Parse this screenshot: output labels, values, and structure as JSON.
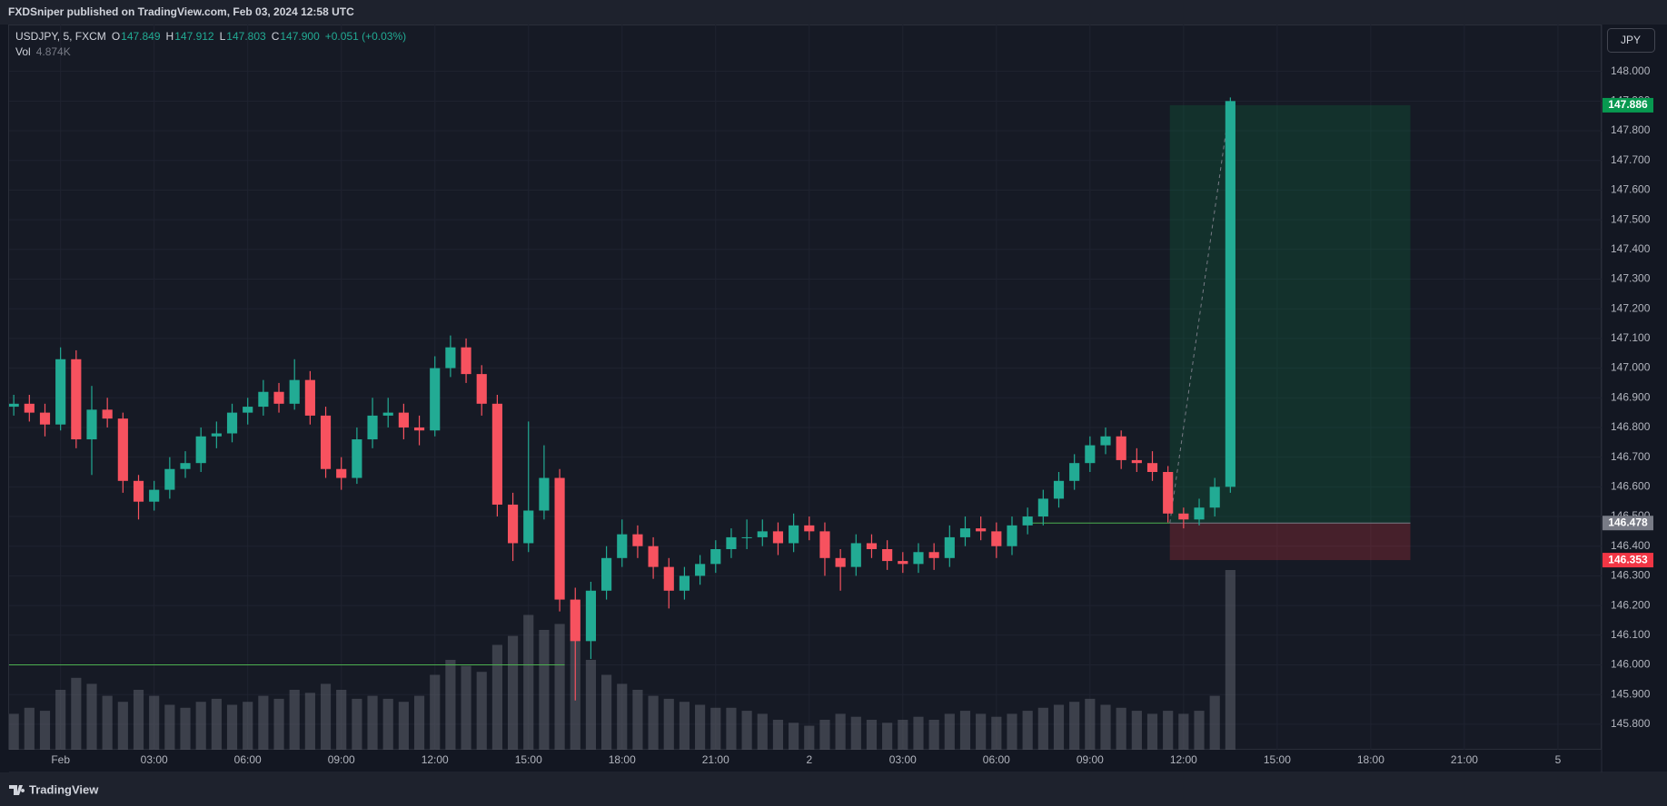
{
  "header": "FXDSniper published on TradingView.com, Feb 03, 2024 12:58 UTC",
  "footer": "TradingView",
  "chart_data": {
    "type": "candlestick",
    "currency": "JPY",
    "legend": {
      "symbol": "USDJPY, 5, FXCM",
      "fields": [
        {
          "label": "O",
          "value": "147.849"
        },
        {
          "label": "H",
          "value": "147.912"
        },
        {
          "label": "L",
          "value": "147.803"
        },
        {
          "label": "C",
          "value": "147.900"
        }
      ],
      "change": "+0.051 (+0.03%)",
      "volume_label": "Vol",
      "volume_value": "4.874K"
    },
    "up_color": "#22ab94",
    "down_color": "#f7525f",
    "volume_color": "#5d606b",
    "grid": true,
    "xlim": [
      -1.65,
      49.4
    ],
    "xticks": [
      {
        "value": 0,
        "label": "Feb"
      },
      {
        "value": 3,
        "label": "03:00"
      },
      {
        "value": 6,
        "label": "06:00"
      },
      {
        "value": 9,
        "label": "09:00"
      },
      {
        "value": 12,
        "label": "12:00"
      },
      {
        "value": 15,
        "label": "15:00"
      },
      {
        "value": 18,
        "label": "18:00"
      },
      {
        "value": 21,
        "label": "21:00"
      },
      {
        "value": 24,
        "label": "2"
      },
      {
        "value": 27,
        "label": "03:00"
      },
      {
        "value": 30,
        "label": "06:00"
      },
      {
        "value": 33,
        "label": "09:00"
      },
      {
        "value": 36,
        "label": "12:00"
      },
      {
        "value": 39,
        "label": "15:00"
      },
      {
        "value": 42,
        "label": "18:00"
      },
      {
        "value": 45,
        "label": "21:00"
      },
      {
        "value": 48,
        "label": "5"
      }
    ],
    "ylim": [
      145.714,
      148.158
    ],
    "yticks": [
      {
        "value": 148.0,
        "label": "148.000"
      },
      {
        "value": 147.9,
        "label": "147.900"
      },
      {
        "value": 147.8,
        "label": "147.800"
      },
      {
        "value": 147.7,
        "label": "147.700"
      },
      {
        "value": 147.6,
        "label": "147.600"
      },
      {
        "value": 147.5,
        "label": "147.500"
      },
      {
        "value": 147.4,
        "label": "147.400"
      },
      {
        "value": 147.3,
        "label": "147.300"
      },
      {
        "value": 147.2,
        "label": "147.200"
      },
      {
        "value": 147.1,
        "label": "147.100"
      },
      {
        "value": 147.0,
        "label": "147.000"
      },
      {
        "value": 146.9,
        "label": "146.900"
      },
      {
        "value": 146.8,
        "label": "146.800"
      },
      {
        "value": 146.7,
        "label": "146.700"
      },
      {
        "value": 146.6,
        "label": "146.600"
      },
      {
        "value": 146.5,
        "label": "146.500"
      },
      {
        "value": 146.4,
        "label": "146.400"
      },
      {
        "value": 146.3,
        "label": "146.300"
      },
      {
        "value": 146.2,
        "label": "146.200"
      },
      {
        "value": 146.1,
        "label": "146.100"
      },
      {
        "value": 146.0,
        "label": "146.000"
      },
      {
        "value": 145.9,
        "label": "145.900"
      },
      {
        "value": 145.8,
        "label": "145.800"
      }
    ],
    "x": [
      -1.5,
      -1.0,
      -0.5,
      0.0,
      0.5,
      1.0,
      1.5,
      2.0,
      2.5,
      3.0,
      3.5,
      4.0,
      4.5,
      5.0,
      5.5,
      6.0,
      6.5,
      7.0,
      7.5,
      8.0,
      8.5,
      9.0,
      9.5,
      10.0,
      10.5,
      11.0,
      11.5,
      12.0,
      12.5,
      13.0,
      13.5,
      14.0,
      14.5,
      15.0,
      15.5,
      16.0,
      16.5,
      17.0,
      17.5,
      18.0,
      18.5,
      19.0,
      19.5,
      20.0,
      20.5,
      21.0,
      21.5,
      22.0,
      22.5,
      23.0,
      23.5,
      24.0,
      24.5,
      25.0,
      25.5,
      26.0,
      26.5,
      27.0,
      27.5,
      28.0,
      28.5,
      29.0,
      29.5,
      30.0,
      30.5,
      31.0,
      31.5,
      32.0,
      32.5,
      33.0,
      33.5,
      34.0,
      34.5,
      35.0,
      35.5,
      36.0,
      36.5,
      37.0,
      37.5
    ],
    "ohlc": [
      [
        146.87,
        146.91,
        146.84,
        146.88
      ],
      [
        146.88,
        146.91,
        146.82,
        146.85
      ],
      [
        146.85,
        146.88,
        146.77,
        146.81
      ],
      [
        146.81,
        147.07,
        146.79,
        147.03
      ],
      [
        147.03,
        147.06,
        146.73,
        146.76
      ],
      [
        146.76,
        146.94,
        146.64,
        146.86
      ],
      [
        146.86,
        146.9,
        146.8,
        146.83
      ],
      [
        146.83,
        146.85,
        146.58,
        146.62
      ],
      [
        146.62,
        146.64,
        146.49,
        146.55
      ],
      [
        146.55,
        146.62,
        146.52,
        146.59
      ],
      [
        146.59,
        146.7,
        146.56,
        146.66
      ],
      [
        146.66,
        146.72,
        146.63,
        146.68
      ],
      [
        146.68,
        146.8,
        146.65,
        146.77
      ],
      [
        146.77,
        146.82,
        146.73,
        146.78
      ],
      [
        146.78,
        146.88,
        146.75,
        146.85
      ],
      [
        146.85,
        146.9,
        146.81,
        146.87
      ],
      [
        146.87,
        146.96,
        146.84,
        146.92
      ],
      [
        146.92,
        146.95,
        146.85,
        146.88
      ],
      [
        146.88,
        147.03,
        146.86,
        146.96
      ],
      [
        146.96,
        146.99,
        146.81,
        146.84
      ],
      [
        146.84,
        146.87,
        146.63,
        146.66
      ],
      [
        146.66,
        146.7,
        146.59,
        146.63
      ],
      [
        146.63,
        146.8,
        146.61,
        146.76
      ],
      [
        146.76,
        146.9,
        146.73,
        146.84
      ],
      [
        146.84,
        146.9,
        146.8,
        146.85
      ],
      [
        146.85,
        146.88,
        146.76,
        146.8
      ],
      [
        146.8,
        146.84,
        146.74,
        146.79
      ],
      [
        146.79,
        147.04,
        146.77,
        147.0
      ],
      [
        147.0,
        147.11,
        146.97,
        147.07
      ],
      [
        147.07,
        147.1,
        146.95,
        146.98
      ],
      [
        146.98,
        147.01,
        146.84,
        146.88
      ],
      [
        146.88,
        146.91,
        146.5,
        146.54
      ],
      [
        146.54,
        146.58,
        146.35,
        146.41
      ],
      [
        146.41,
        146.82,
        146.38,
        146.52
      ],
      [
        146.52,
        146.74,
        146.49,
        146.63
      ],
      [
        146.63,
        146.66,
        146.18,
        146.22
      ],
      [
        146.22,
        146.26,
        145.88,
        146.08
      ],
      [
        146.08,
        146.28,
        146.02,
        146.25
      ],
      [
        146.25,
        146.4,
        146.22,
        146.36
      ],
      [
        146.36,
        146.49,
        146.33,
        146.44
      ],
      [
        146.44,
        146.47,
        146.36,
        146.4
      ],
      [
        146.4,
        146.43,
        146.29,
        146.33
      ],
      [
        146.33,
        146.36,
        146.19,
        146.25
      ],
      [
        146.25,
        146.33,
        146.22,
        146.3
      ],
      [
        146.3,
        146.37,
        146.27,
        146.34
      ],
      [
        146.34,
        146.42,
        146.31,
        146.39
      ],
      [
        146.39,
        146.46,
        146.36,
        146.43
      ],
      [
        146.43,
        146.49,
        146.39,
        146.43
      ],
      [
        146.43,
        146.49,
        146.4,
        146.45
      ],
      [
        146.45,
        146.48,
        146.37,
        146.41
      ],
      [
        146.41,
        146.51,
        146.38,
        146.47
      ],
      [
        146.47,
        146.5,
        146.42,
        146.45
      ],
      [
        146.45,
        146.48,
        146.3,
        146.36
      ],
      [
        146.36,
        146.39,
        146.25,
        146.33
      ],
      [
        146.33,
        146.44,
        146.3,
        146.41
      ],
      [
        146.41,
        146.44,
        146.36,
        146.39
      ],
      [
        146.39,
        146.42,
        146.32,
        146.35
      ],
      [
        146.35,
        146.38,
        146.31,
        146.34
      ],
      [
        146.34,
        146.41,
        146.31,
        146.38
      ],
      [
        146.38,
        146.41,
        146.32,
        146.36
      ],
      [
        146.36,
        146.47,
        146.33,
        146.43
      ],
      [
        146.43,
        146.5,
        146.4,
        146.46
      ],
      [
        146.46,
        146.5,
        146.42,
        146.45
      ],
      [
        146.45,
        146.48,
        146.36,
        146.4
      ],
      [
        146.4,
        146.5,
        146.37,
        146.47
      ],
      [
        146.47,
        146.53,
        146.44,
        146.5
      ],
      [
        146.5,
        146.59,
        146.47,
        146.56
      ],
      [
        146.56,
        146.65,
        146.53,
        146.62
      ],
      [
        146.62,
        146.71,
        146.59,
        146.68
      ],
      [
        146.68,
        146.77,
        146.65,
        146.74
      ],
      [
        146.74,
        146.8,
        146.71,
        146.77
      ],
      [
        146.77,
        146.79,
        146.66,
        146.69
      ],
      [
        146.69,
        146.73,
        146.65,
        146.68
      ],
      [
        146.68,
        146.72,
        146.62,
        146.65
      ],
      [
        146.65,
        146.67,
        146.48,
        146.51
      ],
      [
        146.51,
        146.53,
        146.46,
        146.49
      ],
      [
        146.49,
        146.56,
        146.47,
        146.53
      ],
      [
        146.53,
        146.63,
        146.5,
        146.6
      ],
      [
        146.6,
        147.912,
        146.58,
        147.9
      ]
    ],
    "volume": [
      12,
      14,
      13,
      20,
      24,
      22,
      18,
      16,
      20,
      18,
      15,
      14,
      16,
      17,
      15,
      16,
      18,
      17,
      20,
      19,
      22,
      20,
      17,
      18,
      17,
      16,
      18,
      25,
      30,
      28,
      26,
      35,
      38,
      45,
      40,
      42,
      48,
      30,
      25,
      22,
      20,
      18,
      17,
      16,
      15,
      14,
      14,
      13,
      12,
      10,
      9,
      8,
      10,
      12,
      11,
      10,
      9,
      10,
      11,
      10,
      12,
      13,
      12,
      11,
      12,
      13,
      14,
      15,
      16,
      17,
      15,
      14,
      13,
      12,
      13,
      12,
      13,
      18,
      60
    ],
    "position": {
      "entry": 146.478,
      "target": 147.886,
      "stop": 146.353,
      "x": [
        35.56,
        43.27
      ],
      "entry_color": "#787b86",
      "target_color": "#089950",
      "stop_color": "#f23645"
    },
    "lines": [
      {
        "value": 146.0,
        "x": [
          -1.65,
          16.16
        ],
        "color": "#4caf50"
      },
      {
        "value": 146.478,
        "x": [
          30.96,
          35.56
        ],
        "color": "#4caf50"
      }
    ]
  }
}
